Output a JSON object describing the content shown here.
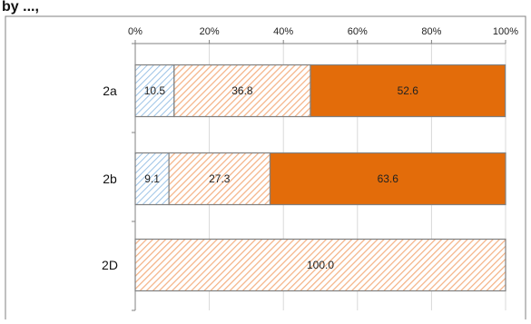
{
  "title_fragment": "by ...,",
  "colors": {
    "seg1_stripe": "#9dc3e6",
    "seg2_stripe": "#f4b183",
    "seg3_fill": "#e36c0a",
    "bar_border": "#808080",
    "grid": "#d9d9d9",
    "axis": "#808080",
    "frame": "#808080"
  },
  "chart_data": {
    "type": "bar",
    "orientation": "horizontal",
    "stacked": true,
    "percent": true,
    "categories": [
      "2a",
      "2b",
      "2D"
    ],
    "series": [
      {
        "values": [
          10.5,
          9.1,
          0
        ],
        "pattern": "hatch-light-blue"
      },
      {
        "values": [
          36.8,
          27.3,
          100.0
        ],
        "pattern": "hatch-light-orange"
      },
      {
        "values": [
          52.6,
          63.6,
          0
        ],
        "pattern": "solid-orange"
      }
    ],
    "data_labels": [
      [
        "10.5",
        "36.8",
        "52.6"
      ],
      [
        "9.1",
        "27.3",
        "63.6"
      ],
      [
        "",
        "100.0",
        ""
      ]
    ],
    "x_ticks": [
      "0%",
      "20%",
      "40%",
      "60%",
      "80%",
      "100%"
    ],
    "xlim": [
      0,
      100
    ],
    "x_axis_position": "top",
    "grid": true,
    "legend": "none",
    "title": "",
    "xlabel": "",
    "ylabel": ""
  }
}
